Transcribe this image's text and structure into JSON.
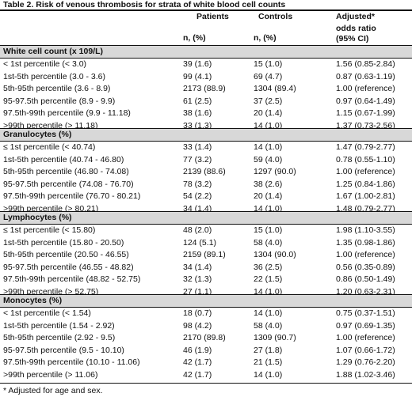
{
  "title": "Table 2. Risk of venous thrombosis for strata of white blood cell counts",
  "columns": {
    "patients": "Patients",
    "patients_unit": "n, (%)",
    "controls": "Controls",
    "controls_unit": "n, (%)",
    "or_line1": "Adjusted*",
    "or_line2": "odds ratio",
    "or_line3": "(95% CI)"
  },
  "sections": [
    {
      "heading": "White cell count (x 109/L)",
      "rows": [
        {
          "label": "< 1st percentile (< 3.0)",
          "patients": "39 (1.6)",
          "controls": "15 (1.0)",
          "or": "1.56 (0.85-2.84)"
        },
        {
          "label": "1st-5th percentile (3.0 - 3.6)",
          "patients": "99 (4.1)",
          "controls": "69 (4.7)",
          "or": "0.87 (0.63-1.19)"
        },
        {
          "label": "5th-95th percentile (3.6 - 8.9)",
          "patients": "2173 (88.9)",
          "controls": "1304 (89.4)",
          "or": "1.00 (reference)"
        },
        {
          "label": "95-97.5th percentile (8.9 - 9.9)",
          "patients": "61 (2.5)",
          "controls": "37 (2.5)",
          "or": "0.97 (0.64-1.49)"
        },
        {
          "label": "97.5th-99th percentile (9.9 - 11.18)",
          "patients": "38 (1.6)",
          "controls": "20 (1.4)",
          "or": "1.15 (0.67-1.99)"
        },
        {
          "label": ">99th percentile (> 11.18)",
          "patients": "33 (1.3)",
          "controls": "14 (1.0)",
          "or": "1.37 (0.73-2.56)"
        }
      ]
    },
    {
      "heading": "Granulocytes (%)",
      "rows": [
        {
          "label": "≤ 1st percentile (< 40.74)",
          "patients": "33 (1.4)",
          "controls": "14 (1.0)",
          "or": "1.47 (0.79-2.77)"
        },
        {
          "label": "1st-5th percentile (40.74 - 46.80)",
          "patients": "77 (3.2)",
          "controls": "59 (4.0)",
          "or": "0.78 (0.55-1.10)"
        },
        {
          "label": "5th-95th percentile (46.80 - 74.08)",
          "patients": "2139 (88.6)",
          "controls": "1297 (90.0)",
          "or": "1.00 (reference)"
        },
        {
          "label": "95-97.5th percentile (74.08 - 76.70)",
          "patients": "78 (3.2)",
          "controls": "38 (2.6)",
          "or": "1.25 (0.84-1.86)"
        },
        {
          "label": "97.5th-99th percentile (76.70 - 80.21)",
          "patients": "54 (2.2)",
          "controls": "20 (1.4)",
          "or": "1.67 (1.00-2.81)"
        },
        {
          "label": ">99th percentile (> 80.21)",
          "patients": "34 (1.4)",
          "controls": "14 (1.0)",
          "or": "1.48 (0.79-2.77)"
        }
      ]
    },
    {
      "heading": "Lymphocytes (%)",
      "rows": [
        {
          "label": "≤ 1st percentile (< 15.80)",
          "patients": "48 (2.0)",
          "controls": "15 (1.0)",
          "or": "1.98 (1.10-3.55)"
        },
        {
          "label": "1st-5th percentile (15.80 - 20.50)",
          "patients": "124 (5.1)",
          "controls": "58 (4.0)",
          "or": "1.35 (0.98-1.86)"
        },
        {
          "label": "5th-95th percentile (20.50 - 46.55)",
          "patients": "2159 (89.1)",
          "controls": "1304 (90.0)",
          "or": "1.00 (reference)"
        },
        {
          "label": "95-97.5th percentile (46.55 - 48.82)",
          "patients": "34 (1.4)",
          "controls": "36 (2.5)",
          "or": "0.56 (0.35-0.89)"
        },
        {
          "label": "97.5th-99th percentile (48.82 - 52.75)",
          "patients": "32 (1.3)",
          "controls": "22 (1.5)",
          "or": "0.86 (0.50-1.49)"
        },
        {
          "label": ">99th percentile (> 52.75)",
          "patients": "27 (1.1)",
          "controls": "14 (1.0)",
          "or": "1.20 (0.63-2.31)"
        }
      ]
    },
    {
      "heading": "Monocytes (%)",
      "rows": [
        {
          "label": "< 1st percentile (< 1.54)",
          "patients": "18 (0.7)",
          "controls": "14 (1.0)",
          "or": "0.75 (0.37-1.51)"
        },
        {
          "label": "1st-5th percentile (1.54 - 2.92)",
          "patients": "98 (4.2)",
          "controls": "58 (4.0)",
          "or": "0.97 (0.69-1.35)"
        },
        {
          "label": "5th-95th percentile (2.92 - 9.5)",
          "patients": "2170 (89.8)",
          "controls": "1309 (90.7)",
          "or": "1.00 (reference)"
        },
        {
          "label": "95-97.5th percentile (9.5 - 10.10)",
          "patients": "46 (1.9)",
          "controls": "27 (1.8)",
          "or": "1.07 (0.66-1.72)"
        },
        {
          "label": "97.5th-99th percentile (10.10 - 11.06)",
          "patients": "42 (1.7)",
          "controls": "21 (1.5)",
          "or": "1.29 (0.76-2.20)"
        },
        {
          "label": ">99th percentile (> 11.06)",
          "patients": "42 (1.7)",
          "controls": "14 (1.0)",
          "or": "1.88 (1.02-3.46)"
        }
      ]
    }
  ],
  "footnote": "*  Adjusted for age and sex."
}
